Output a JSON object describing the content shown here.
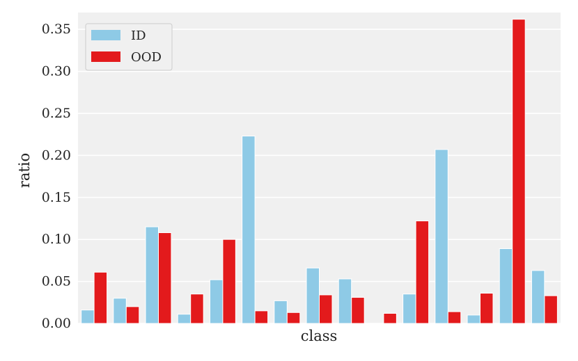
{
  "chart_data": {
    "type": "bar",
    "xlabel": "class",
    "ylabel": "ratio",
    "ylim": [
      0,
      0.37
    ],
    "yticks": [
      "0.00",
      "0.05",
      "0.10",
      "0.15",
      "0.20",
      "0.25",
      "0.30",
      "0.35"
    ],
    "ytick_values": [
      0,
      0.05,
      0.1,
      0.15,
      0.2,
      0.25,
      0.3,
      0.35
    ],
    "grid": true,
    "legend_position": "top-left",
    "series": [
      {
        "name": "ID",
        "color": "#8ecae6",
        "values": [
          0.016,
          0.03,
          0.115,
          0.011,
          0.052,
          0.223,
          0.027,
          0.066,
          0.053,
          0.0,
          0.035,
          0.207,
          0.01,
          0.089,
          0.063
        ]
      },
      {
        "name": "OOD",
        "color": "#e31a1c",
        "values": [
          0.061,
          0.02,
          0.108,
          0.035,
          0.1,
          0.015,
          0.013,
          0.034,
          0.031,
          0.012,
          0.122,
          0.014,
          0.036,
          0.362,
          0.033
        ]
      }
    ]
  }
}
